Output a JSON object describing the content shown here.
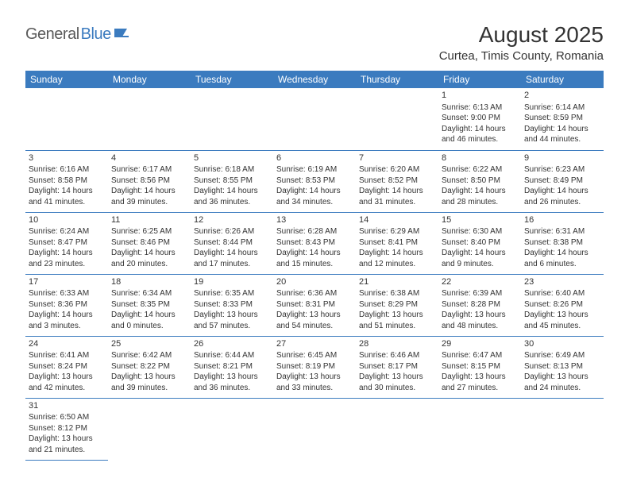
{
  "logo": {
    "part1": "General",
    "part2": "Blue"
  },
  "title": "August 2025",
  "location": "Curtea, Timis County, Romania",
  "header_color": "#3b7bbf",
  "header_text_color": "#ffffff",
  "text_color": "#333333",
  "border_color": "#3b7bbf",
  "days_of_week": [
    "Sunday",
    "Monday",
    "Tuesday",
    "Wednesday",
    "Thursday",
    "Friday",
    "Saturday"
  ],
  "weeks": [
    [
      null,
      null,
      null,
      null,
      null,
      {
        "n": "1",
        "sr": "Sunrise: 6:13 AM",
        "ss": "Sunset: 9:00 PM",
        "d1": "Daylight: 14 hours",
        "d2": "and 46 minutes."
      },
      {
        "n": "2",
        "sr": "Sunrise: 6:14 AM",
        "ss": "Sunset: 8:59 PM",
        "d1": "Daylight: 14 hours",
        "d2": "and 44 minutes."
      }
    ],
    [
      {
        "n": "3",
        "sr": "Sunrise: 6:16 AM",
        "ss": "Sunset: 8:58 PM",
        "d1": "Daylight: 14 hours",
        "d2": "and 41 minutes."
      },
      {
        "n": "4",
        "sr": "Sunrise: 6:17 AM",
        "ss": "Sunset: 8:56 PM",
        "d1": "Daylight: 14 hours",
        "d2": "and 39 minutes."
      },
      {
        "n": "5",
        "sr": "Sunrise: 6:18 AM",
        "ss": "Sunset: 8:55 PM",
        "d1": "Daylight: 14 hours",
        "d2": "and 36 minutes."
      },
      {
        "n": "6",
        "sr": "Sunrise: 6:19 AM",
        "ss": "Sunset: 8:53 PM",
        "d1": "Daylight: 14 hours",
        "d2": "and 34 minutes."
      },
      {
        "n": "7",
        "sr": "Sunrise: 6:20 AM",
        "ss": "Sunset: 8:52 PM",
        "d1": "Daylight: 14 hours",
        "d2": "and 31 minutes."
      },
      {
        "n": "8",
        "sr": "Sunrise: 6:22 AM",
        "ss": "Sunset: 8:50 PM",
        "d1": "Daylight: 14 hours",
        "d2": "and 28 minutes."
      },
      {
        "n": "9",
        "sr": "Sunrise: 6:23 AM",
        "ss": "Sunset: 8:49 PM",
        "d1": "Daylight: 14 hours",
        "d2": "and 26 minutes."
      }
    ],
    [
      {
        "n": "10",
        "sr": "Sunrise: 6:24 AM",
        "ss": "Sunset: 8:47 PM",
        "d1": "Daylight: 14 hours",
        "d2": "and 23 minutes."
      },
      {
        "n": "11",
        "sr": "Sunrise: 6:25 AM",
        "ss": "Sunset: 8:46 PM",
        "d1": "Daylight: 14 hours",
        "d2": "and 20 minutes."
      },
      {
        "n": "12",
        "sr": "Sunrise: 6:26 AM",
        "ss": "Sunset: 8:44 PM",
        "d1": "Daylight: 14 hours",
        "d2": "and 17 minutes."
      },
      {
        "n": "13",
        "sr": "Sunrise: 6:28 AM",
        "ss": "Sunset: 8:43 PM",
        "d1": "Daylight: 14 hours",
        "d2": "and 15 minutes."
      },
      {
        "n": "14",
        "sr": "Sunrise: 6:29 AM",
        "ss": "Sunset: 8:41 PM",
        "d1": "Daylight: 14 hours",
        "d2": "and 12 minutes."
      },
      {
        "n": "15",
        "sr": "Sunrise: 6:30 AM",
        "ss": "Sunset: 8:40 PM",
        "d1": "Daylight: 14 hours",
        "d2": "and 9 minutes."
      },
      {
        "n": "16",
        "sr": "Sunrise: 6:31 AM",
        "ss": "Sunset: 8:38 PM",
        "d1": "Daylight: 14 hours",
        "d2": "and 6 minutes."
      }
    ],
    [
      {
        "n": "17",
        "sr": "Sunrise: 6:33 AM",
        "ss": "Sunset: 8:36 PM",
        "d1": "Daylight: 14 hours",
        "d2": "and 3 minutes."
      },
      {
        "n": "18",
        "sr": "Sunrise: 6:34 AM",
        "ss": "Sunset: 8:35 PM",
        "d1": "Daylight: 14 hours",
        "d2": "and 0 minutes."
      },
      {
        "n": "19",
        "sr": "Sunrise: 6:35 AM",
        "ss": "Sunset: 8:33 PM",
        "d1": "Daylight: 13 hours",
        "d2": "and 57 minutes."
      },
      {
        "n": "20",
        "sr": "Sunrise: 6:36 AM",
        "ss": "Sunset: 8:31 PM",
        "d1": "Daylight: 13 hours",
        "d2": "and 54 minutes."
      },
      {
        "n": "21",
        "sr": "Sunrise: 6:38 AM",
        "ss": "Sunset: 8:29 PM",
        "d1": "Daylight: 13 hours",
        "d2": "and 51 minutes."
      },
      {
        "n": "22",
        "sr": "Sunrise: 6:39 AM",
        "ss": "Sunset: 8:28 PM",
        "d1": "Daylight: 13 hours",
        "d2": "and 48 minutes."
      },
      {
        "n": "23",
        "sr": "Sunrise: 6:40 AM",
        "ss": "Sunset: 8:26 PM",
        "d1": "Daylight: 13 hours",
        "d2": "and 45 minutes."
      }
    ],
    [
      {
        "n": "24",
        "sr": "Sunrise: 6:41 AM",
        "ss": "Sunset: 8:24 PM",
        "d1": "Daylight: 13 hours",
        "d2": "and 42 minutes."
      },
      {
        "n": "25",
        "sr": "Sunrise: 6:42 AM",
        "ss": "Sunset: 8:22 PM",
        "d1": "Daylight: 13 hours",
        "d2": "and 39 minutes."
      },
      {
        "n": "26",
        "sr": "Sunrise: 6:44 AM",
        "ss": "Sunset: 8:21 PM",
        "d1": "Daylight: 13 hours",
        "d2": "and 36 minutes."
      },
      {
        "n": "27",
        "sr": "Sunrise: 6:45 AM",
        "ss": "Sunset: 8:19 PM",
        "d1": "Daylight: 13 hours",
        "d2": "and 33 minutes."
      },
      {
        "n": "28",
        "sr": "Sunrise: 6:46 AM",
        "ss": "Sunset: 8:17 PM",
        "d1": "Daylight: 13 hours",
        "d2": "and 30 minutes."
      },
      {
        "n": "29",
        "sr": "Sunrise: 6:47 AM",
        "ss": "Sunset: 8:15 PM",
        "d1": "Daylight: 13 hours",
        "d2": "and 27 minutes."
      },
      {
        "n": "30",
        "sr": "Sunrise: 6:49 AM",
        "ss": "Sunset: 8:13 PM",
        "d1": "Daylight: 13 hours",
        "d2": "and 24 minutes."
      }
    ],
    [
      {
        "n": "31",
        "sr": "Sunrise: 6:50 AM",
        "ss": "Sunset: 8:12 PM",
        "d1": "Daylight: 13 hours",
        "d2": "and 21 minutes."
      },
      null,
      null,
      null,
      null,
      null,
      null
    ]
  ]
}
